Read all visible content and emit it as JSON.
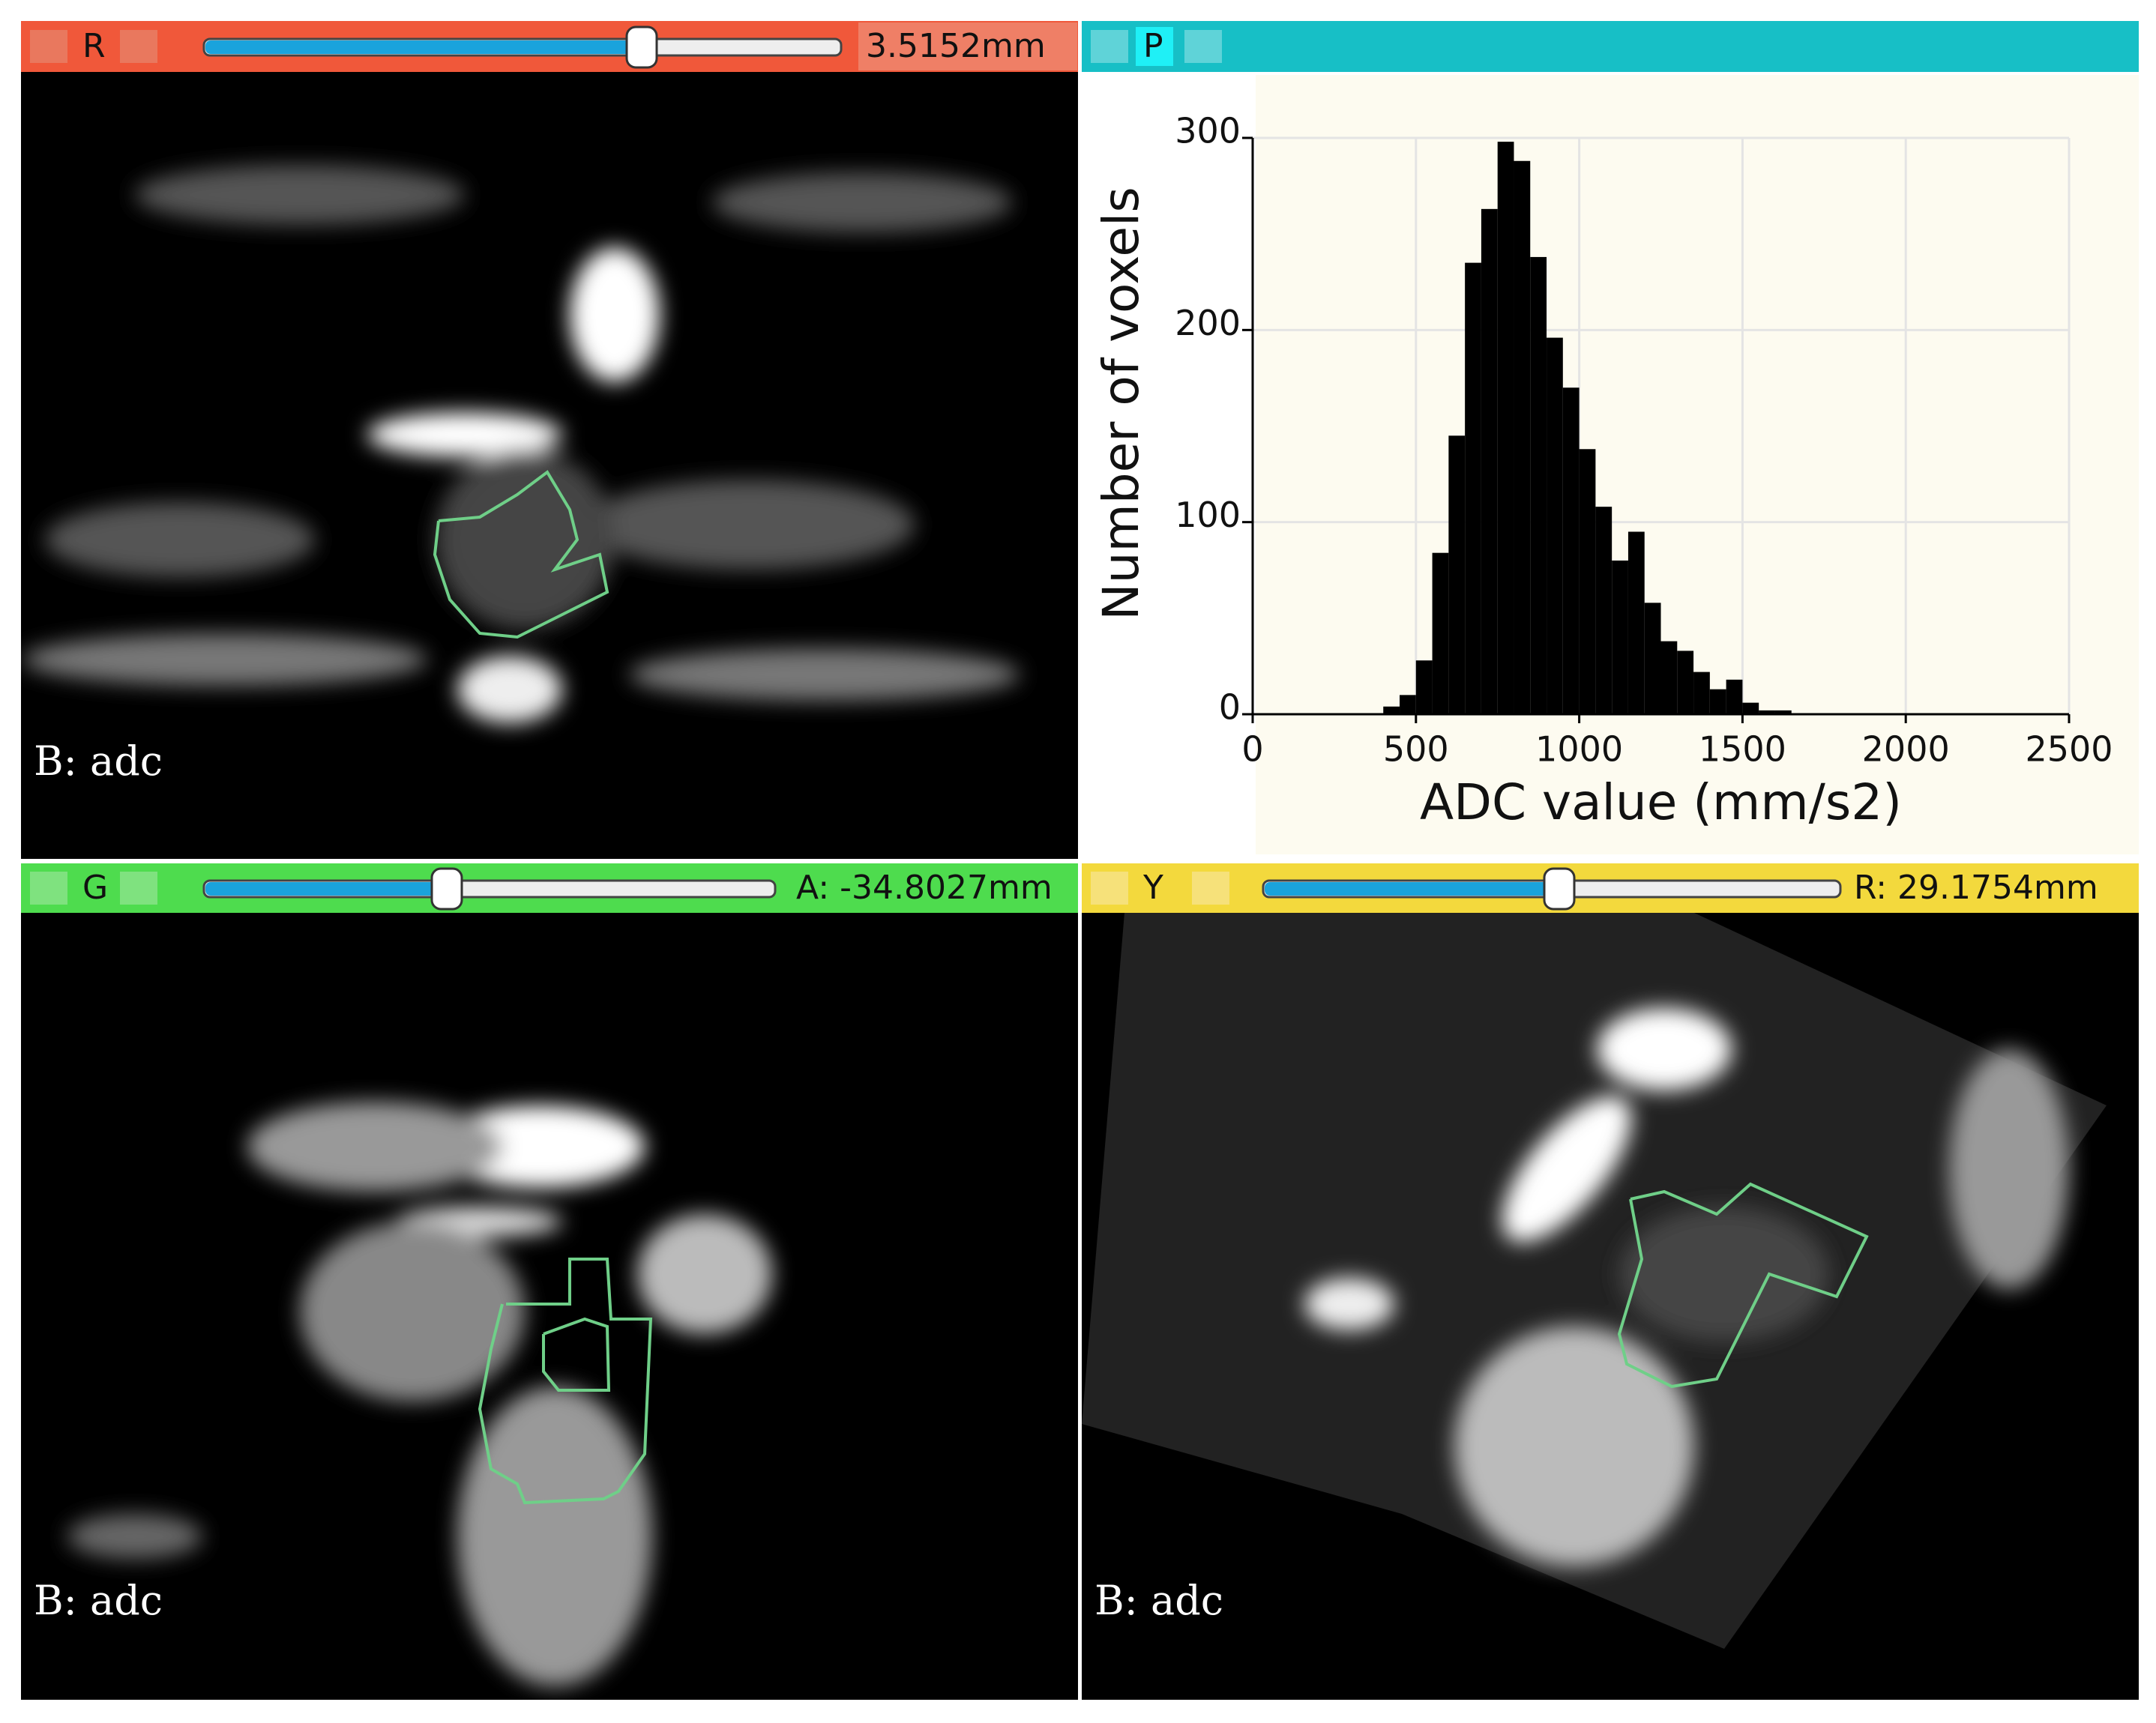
{
  "views": [
    {
      "letter": "R",
      "offset": "3.5152mm",
      "background": "B: adc"
    },
    {
      "letter": "P"
    },
    {
      "letter": "G",
      "offset": "A: -34.8027mm",
      "background": "B: adc"
    },
    {
      "letter": "Y",
      "offset": "R: 29.1754mm",
      "background": "B: adc"
    }
  ],
  "chart_data": {
    "type": "histogram",
    "xlabel": "ADC value (mm/s2)",
    "ylabel": "Number of voxels",
    "bins": [
      400,
      450,
      500,
      550,
      600,
      650,
      700,
      750,
      800,
      850,
      900,
      950,
      1000,
      1050,
      1100,
      1150,
      1200,
      1250,
      1300,
      1350,
      1400,
      1450,
      1500,
      1550,
      1600,
      1650
    ],
    "values": [
      4,
      10,
      28,
      84,
      145,
      235,
      263,
      298,
      288,
      238,
      196,
      170,
      138,
      108,
      80,
      95,
      58,
      38,
      33,
      22,
      13,
      18,
      6,
      2,
      2
    ],
    "color": "#000000",
    "xlim": [
      0,
      2500
    ],
    "ylim": [
      0,
      300
    ],
    "xticks": [
      0,
      500,
      1000,
      1500,
      2000,
      2500
    ],
    "yticks": [
      0,
      100,
      200,
      300
    ],
    "grid": true
  }
}
